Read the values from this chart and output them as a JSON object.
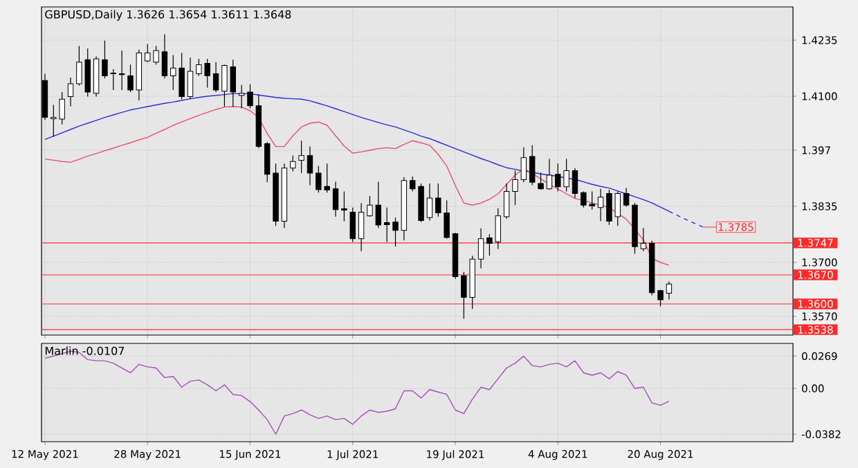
{
  "chart_data": [
    {
      "type": "candlestick",
      "title": "GBPUSD,Daily 1.3626 1.3654 1.3611 1.3648",
      "tick_labels": "y",
      "grid": true,
      "categories": [
        null,
        null,
        null,
        null,
        null,
        null,
        null,
        null,
        null,
        null,
        null,
        null,
        null,
        null,
        null,
        null,
        null,
        null,
        null,
        null,
        null,
        null,
        null,
        null,
        null,
        null,
        null,
        null,
        null,
        null,
        null,
        null,
        null,
        null,
        null,
        null,
        null,
        null,
        null,
        null,
        null,
        null,
        null,
        null,
        null,
        null,
        null,
        null,
        null,
        null,
        null,
        null,
        null,
        null,
        null,
        null,
        null,
        null,
        null,
        null,
        null,
        null,
        null,
        null,
        null,
        null,
        null,
        null,
        null,
        null,
        null,
        null,
        null,
        null,
        null,
        null,
        null,
        null
      ],
      "ohlc": [
        [
          1.4138,
          1.4154,
          1.4043,
          1.4049
        ],
        [
          1.4046,
          1.4079,
          1.4002,
          1.4049
        ],
        [
          1.4045,
          1.411,
          1.4032,
          1.4093
        ],
        [
          1.4099,
          1.4145,
          1.4076,
          1.413
        ],
        [
          1.413,
          1.4221,
          1.4126,
          1.4182
        ],
        [
          1.4188,
          1.4215,
          1.4099,
          1.411
        ],
        [
          1.4107,
          1.4196,
          1.4099,
          1.419
        ],
        [
          1.4188,
          1.4234,
          1.4143,
          1.4149
        ],
        [
          1.4156,
          1.4165,
          1.4115,
          1.4154
        ],
        [
          1.4154,
          1.421,
          1.4115,
          1.4152
        ],
        [
          1.4149,
          1.4176,
          1.411,
          1.4115
        ],
        [
          1.4115,
          1.4212,
          1.409,
          1.4204
        ],
        [
          1.4185,
          1.4226,
          1.4182,
          1.4204
        ],
        [
          1.4182,
          1.4221,
          1.4176,
          1.421
        ],
        [
          1.4207,
          1.4249,
          1.4143,
          1.4149
        ],
        [
          1.4149,
          1.4199,
          1.4115,
          1.4168
        ],
        [
          1.4168,
          1.4204,
          1.4093,
          1.4099
        ],
        [
          1.4099,
          1.4193,
          1.4093,
          1.416
        ],
        [
          1.4154,
          1.419,
          1.4149,
          1.4176
        ],
        [
          1.4179,
          1.419,
          1.4121,
          1.4149
        ],
        [
          1.4154,
          1.4182,
          1.411,
          1.4115
        ],
        [
          1.4112,
          1.4176,
          1.4075,
          1.4174
        ],
        [
          1.4171,
          1.4188,
          1.4075,
          1.411
        ],
        [
          1.4102,
          1.4127,
          1.4071,
          1.4107
        ],
        [
          1.411,
          1.4129,
          1.4071,
          1.4077
        ],
        [
          1.4077,
          1.4104,
          1.3975,
          1.3979
        ],
        [
          1.3986,
          1.399,
          1.3893,
          1.3912
        ],
        [
          1.3915,
          1.3938,
          1.3788,
          1.3799
        ],
        [
          1.3799,
          1.3938,
          1.3783,
          1.3927
        ],
        [
          1.3927,
          1.3957,
          1.3919,
          1.3943
        ],
        [
          1.3946,
          1.3993,
          1.3915,
          1.3957
        ],
        [
          1.3957,
          1.3979,
          1.3886,
          1.3915
        ],
        [
          1.3915,
          1.3932,
          1.3868,
          1.3875
        ],
        [
          1.3883,
          1.3938,
          1.3868,
          1.3874
        ],
        [
          1.3877,
          1.3894,
          1.381,
          1.3827
        ],
        [
          1.3829,
          1.3871,
          1.3799,
          1.3826
        ],
        [
          1.3821,
          1.3832,
          1.3749,
          1.3757
        ],
        [
          1.3757,
          1.3843,
          1.3727,
          1.3821
        ],
        [
          1.3812,
          1.386,
          1.381,
          1.3838
        ],
        [
          1.3838,
          1.3894,
          1.3783,
          1.379
        ],
        [
          1.3796,
          1.3832,
          1.3749,
          1.3791
        ],
        [
          1.3797,
          1.3808,
          1.3738,
          1.3777
        ],
        [
          1.3777,
          1.3905,
          1.3753,
          1.3897
        ],
        [
          1.3897,
          1.3907,
          1.3871,
          1.3877
        ],
        [
          1.3883,
          1.389,
          1.3797,
          1.3801
        ],
        [
          1.3808,
          1.389,
          1.3801,
          1.3855
        ],
        [
          1.3855,
          1.389,
          1.381,
          1.3819
        ],
        [
          1.3819,
          1.3849,
          1.3757,
          1.376
        ],
        [
          1.3769,
          1.3771,
          1.366,
          1.3666
        ],
        [
          1.3668,
          1.3677,
          1.3564,
          1.3616
        ],
        [
          1.3616,
          1.3716,
          1.3588,
          1.3708
        ],
        [
          1.3708,
          1.3782,
          1.3686,
          1.3757
        ],
        [
          1.3759,
          1.3768,
          1.3716,
          1.3746
        ],
        [
          1.3749,
          1.383,
          1.3732,
          1.3812
        ],
        [
          1.381,
          1.389,
          1.3805,
          1.3871
        ],
        [
          1.3871,
          1.3921,
          1.3838,
          1.3899
        ],
        [
          1.3899,
          1.3977,
          1.3893,
          1.3952
        ],
        [
          1.3955,
          1.3982,
          1.3886,
          1.3893
        ],
        [
          1.389,
          1.3916,
          1.3875,
          1.3877
        ],
        [
          1.3877,
          1.3949,
          1.3875,
          1.391
        ],
        [
          1.3912,
          1.3938,
          1.3871,
          1.3882
        ],
        [
          1.3882,
          1.3949,
          1.3871,
          1.3921
        ],
        [
          1.3921,
          1.3927,
          1.3855,
          1.3866
        ],
        [
          1.3868,
          1.3871,
          1.3832,
          1.3838
        ],
        [
          1.384,
          1.3871,
          1.3827,
          1.3836
        ],
        [
          1.3832,
          1.3877,
          1.3799,
          1.3857
        ],
        [
          1.3866,
          1.3875,
          1.379,
          1.3799
        ],
        [
          1.381,
          1.3871,
          1.3788,
          1.3866
        ],
        [
          1.3866,
          1.3879,
          1.3834,
          1.3838
        ],
        [
          1.3838,
          1.3843,
          1.3721,
          1.3738
        ],
        [
          1.3733,
          1.3783,
          1.3727,
          1.3746
        ],
        [
          1.3746,
          1.3752,
          1.3621,
          1.3627
        ],
        [
          1.3632,
          1.3634,
          1.3594,
          1.361
        ],
        [
          1.3626,
          1.3654,
          1.3611,
          1.3648
        ],
        null,
        null,
        null,
        null
      ],
      "series": [
        {
          "type": "line",
          "color": "#2b2bd6",
          "values": [
            1.3996,
            1.4004,
            1.4012,
            1.402,
            1.4028,
            1.4035,
            1.4042,
            1.4049,
            1.4055,
            1.4061,
            1.4067,
            1.4071,
            1.4075,
            1.4079,
            1.4083,
            1.4086,
            1.409,
            1.4094,
            1.4097,
            1.41,
            1.4102,
            1.4104,
            1.4106,
            1.4106,
            1.4106,
            1.4103,
            1.41,
            1.4097,
            1.4095,
            1.4094,
            1.4093,
            1.4089,
            1.4083,
            1.4077,
            1.407,
            1.4063,
            1.4056,
            1.4049,
            1.4043,
            1.4037,
            1.4031,
            1.4026,
            1.4019,
            1.4012,
            1.4004,
            1.3998,
            1.399,
            1.3982,
            1.3974,
            1.3966,
            1.3958,
            1.395,
            1.3943,
            1.3935,
            1.3928,
            1.3924,
            1.392,
            1.3917,
            1.3913,
            1.391,
            1.3907,
            1.3903,
            1.39,
            1.3894,
            1.3888,
            1.3883,
            1.3879,
            1.3872,
            1.3865,
            1.3858,
            1.3851,
            1.3843,
            1.3833,
            1.3823,
            null,
            null,
            null,
            null
          ]
        },
        {
          "type": "line",
          "color": "#e8506a",
          "values": [
            1.3949,
            1.3946,
            1.3943,
            1.3941,
            1.3948,
            1.3956,
            1.3962,
            1.3969,
            1.3975,
            1.3982,
            1.3988,
            1.3995,
            1.4001,
            1.4011,
            1.402,
            1.403,
            1.4038,
            1.4046,
            1.4054,
            1.4061,
            1.4068,
            1.4074,
            1.4075,
            1.4074,
            1.4065,
            1.4049,
            1.401,
            1.3979,
            1.3979,
            1.4005,
            1.4026,
            1.4035,
            1.4038,
            1.403,
            1.4005,
            1.398,
            1.3963,
            1.3966,
            1.397,
            1.3974,
            1.3976,
            1.3974,
            1.3984,
            1.3993,
            1.3988,
            1.3982,
            1.396,
            1.3932,
            1.3885,
            1.3843,
            1.3838,
            1.3843,
            1.3852,
            1.3865,
            1.3888,
            1.391,
            1.3926,
            1.3914,
            1.3901,
            1.3888,
            1.3877,
            1.3865,
            1.3854,
            1.3849,
            1.3843,
            1.3838,
            1.3832,
            1.3818,
            1.3804,
            1.378,
            1.3754,
            1.371,
            1.37,
            1.3693,
            null,
            null,
            null,
            null
          ]
        },
        {
          "type": "line",
          "color": "#2b2bd6",
          "line_style": "dashed",
          "values": [
            null,
            null,
            null,
            null,
            null,
            null,
            null,
            null,
            null,
            null,
            null,
            null,
            null,
            null,
            null,
            null,
            null,
            null,
            null,
            null,
            null,
            null,
            null,
            null,
            null,
            null,
            null,
            null,
            null,
            null,
            null,
            null,
            null,
            null,
            null,
            null,
            null,
            null,
            null,
            null,
            null,
            null,
            null,
            null,
            null,
            null,
            null,
            null,
            null,
            null,
            null,
            null,
            null,
            null,
            null,
            null,
            null,
            null,
            null,
            null,
            null,
            null,
            null,
            null,
            null,
            null,
            null,
            null,
            null,
            null,
            null,
            null,
            null,
            1.3823,
            1.3813,
            1.3803,
            1.3794,
            1.3785
          ]
        }
      ],
      "ylim": [
        1.3525,
        1.4315
      ],
      "yticks": [
        1.4235,
        {
          "value": 1.41,
          "label": "1.4100"
        },
        1.397,
        1.3835,
        {
          "value": 1.37,
          "label": "1.3700"
        },
        {
          "value": 1.357,
          "label": "1.3570"
        }
      ],
      "ref_lines": [
        {
          "axis": "y",
          "value": 1.3747,
          "label": "1.3747",
          "color": "#ff2a2a"
        },
        {
          "axis": "y",
          "value": 1.367,
          "label": "1.3670",
          "color": "#ff2a2a"
        },
        {
          "axis": "y",
          "value": 1.36,
          "label": "1.3600",
          "color": "#ff2a2a"
        },
        {
          "axis": "y",
          "value": 1.3538,
          "label": "1.3538",
          "color": "#ff2a2a"
        }
      ],
      "annotations": [
        "1.3785"
      ]
    },
    {
      "type": "line",
      "title": "Marlin -0.0107",
      "grid": true,
      "categories": [
        "12 May 2021",
        null,
        null,
        null,
        null,
        null,
        null,
        null,
        null,
        null,
        null,
        null,
        "28 May 2021",
        null,
        null,
        null,
        null,
        null,
        null,
        null,
        null,
        null,
        null,
        null,
        "15 Jun 2021",
        null,
        null,
        null,
        null,
        null,
        null,
        null,
        null,
        null,
        null,
        null,
        "1 Jul 2021",
        null,
        null,
        null,
        null,
        null,
        null,
        null,
        null,
        null,
        null,
        null,
        "19 Jul 2021",
        null,
        null,
        null,
        null,
        null,
        null,
        null,
        null,
        null,
        null,
        null,
        "4 Aug 2021",
        null,
        null,
        null,
        null,
        null,
        null,
        null,
        null,
        null,
        null,
        null,
        "20 Aug 2021",
        null,
        null,
        null,
        null,
        null
      ],
      "series": [
        {
          "color": "#a64db8",
          "values": [
            0.025,
            0.027,
            0.029,
            0.031,
            0.03,
            0.024,
            0.023,
            0.023,
            0.021,
            0.017,
            0.013,
            0.02,
            0.018,
            0.017,
            0.009,
            0.01,
            0.001,
            0.006,
            0.007,
            0.003,
            -0.002,
            0.003,
            -0.005,
            -0.006,
            -0.011,
            -0.018,
            -0.026,
            -0.0382,
            -0.023,
            -0.021,
            -0.018,
            -0.022,
            -0.025,
            -0.023,
            -0.026,
            -0.025,
            -0.03,
            -0.023,
            -0.018,
            -0.02,
            -0.019,
            -0.017,
            -0.002,
            -0.002,
            -0.008,
            -0.001,
            -0.003,
            -0.005,
            -0.018,
            -0.021,
            -0.009,
            0.001,
            -0.001,
            0.008,
            0.017,
            0.021,
            0.0269,
            0.019,
            0.018,
            0.02,
            0.021,
            0.018,
            0.023,
            0.013,
            0.011,
            0.013,
            0.008,
            0.014,
            0.011,
            0.0,
            0.001,
            -0.012,
            -0.014,
            -0.0107,
            null,
            null,
            null,
            null
          ]
        }
      ],
      "ylim": [
        -0.0444,
        0.0375
      ],
      "yticks": [
        0.0269,
        {
          "value": 0,
          "label": "0.00"
        },
        -0.0382
      ]
    }
  ]
}
